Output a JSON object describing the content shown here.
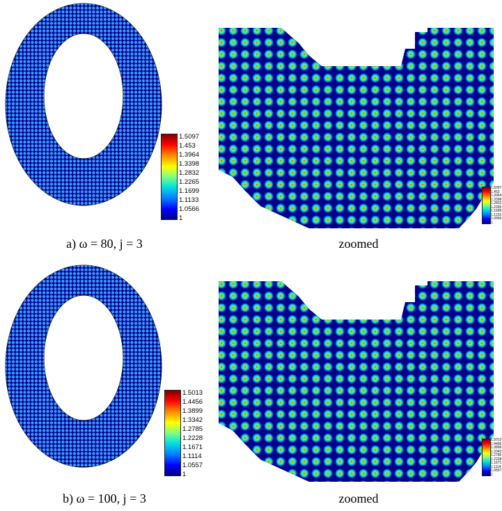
{
  "figure": {
    "rows": [
      {
        "caption_left": "a) ω = 80, j = 3",
        "caption_right": "zoomed",
        "colorbar": [
          "1.5097",
          "1.453",
          "1.3964",
          "1.3398",
          "1.2832",
          "1.2265",
          "1.1699",
          "1.1133",
          "1.0566",
          "1"
        ]
      },
      {
        "caption_left": "b) ω = 100, j = 3",
        "caption_right": "zoomed",
        "colorbar": [
          "1.5013",
          "1.4456",
          "1.3899",
          "1.3342",
          "1.2785",
          "1.2228",
          "1.1671",
          "1.1114",
          "1.0557",
          "1"
        ]
      }
    ],
    "colors": {
      "background_field": "#00008b",
      "spot_low": "#00c8ff",
      "spot_mid": "#7fff40",
      "spot_high": "#ff2a00"
    }
  }
}
